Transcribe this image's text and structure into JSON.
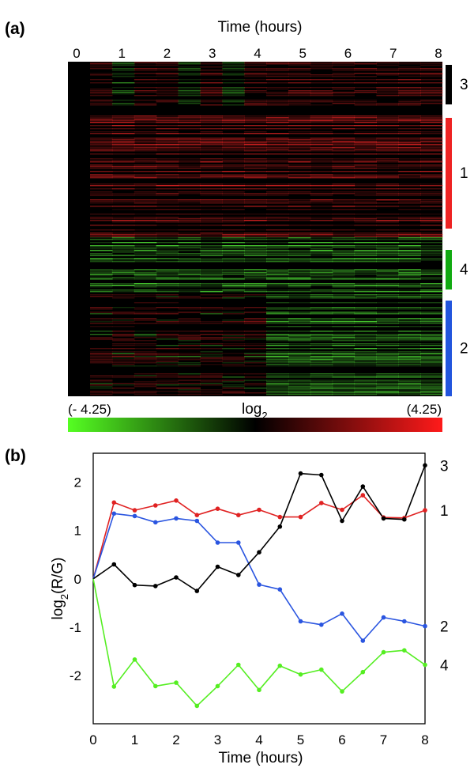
{
  "panel_a": {
    "label": "(a)",
    "x_title": "Time (hours)",
    "x_ticks": [
      "0",
      "1",
      "2",
      "3",
      "4",
      "5",
      "6",
      "7",
      "8"
    ],
    "colorbar": {
      "min_label": "(- 4.25)",
      "max_label": "(4.25)",
      "title": "log",
      "title_sub": "2",
      "colors": [
        "#55ff22",
        "#000000",
        "#ff1a1a"
      ]
    },
    "clusters": [
      {
        "label": "3",
        "color": "#000000"
      },
      {
        "label": "1",
        "color": "#ee2222"
      },
      {
        "label": "4",
        "color": "#11aa11"
      },
      {
        "label": "2",
        "color": "#2255dd"
      }
    ]
  },
  "panel_b": {
    "label": "(b)",
    "ylabel_main": "log",
    "ylabel_sub": "2",
    "ylabel_tail": "(R/G)",
    "xlabel": "Time (hours)"
  },
  "chart_data": [
    {
      "type": "heatmap",
      "xlabel": "Time (hours)",
      "x_ticks": [
        0,
        1,
        2,
        3,
        4,
        5,
        6,
        7,
        8
      ],
      "value_range": [
        -4.25,
        4.25
      ],
      "colorscale": "green-black-red (log2)",
      "row_clusters": [
        "3",
        "1",
        "4",
        "2"
      ]
    },
    {
      "type": "line",
      "xlabel": "Time (hours)",
      "ylabel": "log2 (R/G)",
      "xlim": [
        0,
        8
      ],
      "ylim": [
        -3.0,
        2.6
      ],
      "x_ticks": [
        0,
        1,
        2,
        3,
        4,
        5,
        6,
        7,
        8
      ],
      "y_ticks": [
        -2,
        -1,
        0,
        1,
        2
      ],
      "x": [
        0,
        0.5,
        1,
        1.5,
        2,
        2.5,
        3,
        3.5,
        4,
        4.5,
        5,
        5.5,
        6,
        6.5,
        7,
        7.5,
        8
      ],
      "series": [
        {
          "name": "1",
          "color": "#e02222",
          "values": [
            0,
            1.58,
            1.42,
            1.52,
            1.62,
            1.32,
            1.45,
            1.32,
            1.43,
            1.28,
            1.28,
            1.57,
            1.43,
            1.73,
            1.27,
            1.26,
            1.42
          ]
        },
        {
          "name": "2",
          "color": "#2a55e0",
          "values": [
            0,
            1.35,
            1.3,
            1.17,
            1.25,
            1.2,
            0.75,
            0.75,
            -0.12,
            -0.22,
            -0.88,
            -0.95,
            -0.72,
            -1.28,
            -0.8,
            -0.88,
            -0.98
          ]
        },
        {
          "name": "3",
          "color": "#000000",
          "values": [
            0,
            0.3,
            -0.13,
            -0.15,
            0.03,
            -0.25,
            0.25,
            0.08,
            0.55,
            1.08,
            2.18,
            2.15,
            1.2,
            1.91,
            1.25,
            1.23,
            2.35
          ]
        },
        {
          "name": "4",
          "color": "#55ee22",
          "values": [
            0,
            -2.23,
            -1.67,
            -2.22,
            -2.15,
            -2.63,
            -2.22,
            -1.78,
            -2.3,
            -1.8,
            -1.98,
            -1.88,
            -2.33,
            -1.93,
            -1.52,
            -1.48,
            -1.78
          ]
        }
      ]
    }
  ]
}
